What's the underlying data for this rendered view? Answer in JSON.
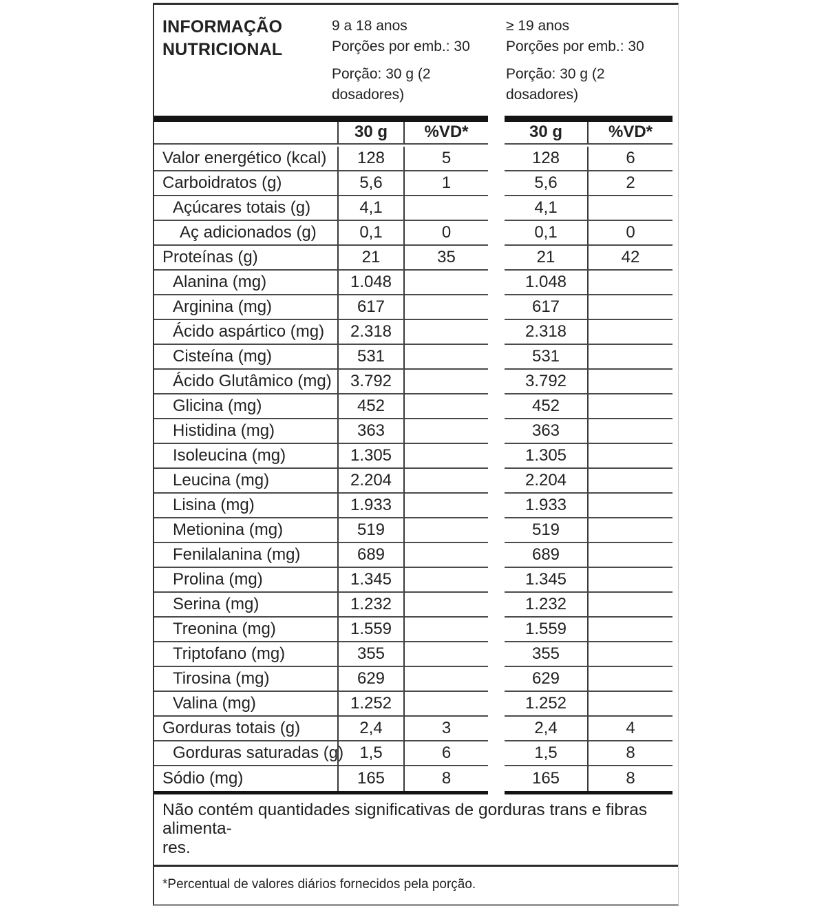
{
  "label": {
    "title": "INFORMAÇÃO NUTRICIONAL",
    "groups": [
      {
        "age_range": "9 a 18 anos",
        "servings_per_package": "Porções por emb.: 30",
        "serving_size": "Porção: 30 g (2 dosadores)"
      },
      {
        "age_range": "≥ 19 anos",
        "servings_per_package": "Porções por emb.: 30",
        "serving_size": "Porção: 30 g (2 dosadores)"
      }
    ],
    "col_headers": {
      "amount": "30 g",
      "dv": "%VD*"
    },
    "rows": [
      {
        "label": "Valor energético (kcal)",
        "indent": 0,
        "g1_amount": "128",
        "g1_dv": "5",
        "g2_amount": "128",
        "g2_dv": "6"
      },
      {
        "label": "Carboidratos (g)",
        "indent": 0,
        "g1_amount": "5,6",
        "g1_dv": "1",
        "g2_amount": "5,6",
        "g2_dv": "2"
      },
      {
        "label": "Açúcares totais (g)",
        "indent": 1,
        "g1_amount": "4,1",
        "g1_dv": "",
        "g2_amount": "4,1",
        "g2_dv": ""
      },
      {
        "label": "Aç adicionados (g)",
        "indent": 2,
        "g1_amount": "0,1",
        "g1_dv": "0",
        "g2_amount": "0,1",
        "g2_dv": "0"
      },
      {
        "label": "Proteínas (g)",
        "indent": 0,
        "g1_amount": "21",
        "g1_dv": "35",
        "g2_amount": "21",
        "g2_dv": "42"
      },
      {
        "label": "Alanina (mg)",
        "indent": 1,
        "g1_amount": "1.048",
        "g1_dv": "",
        "g2_amount": "1.048",
        "g2_dv": ""
      },
      {
        "label": "Arginina (mg)",
        "indent": 1,
        "g1_amount": "617",
        "g1_dv": "",
        "g2_amount": "617",
        "g2_dv": ""
      },
      {
        "label": "Ácido aspártico (mg)",
        "indent": 1,
        "g1_amount": "2.318",
        "g1_dv": "",
        "g2_amount": "2.318",
        "g2_dv": ""
      },
      {
        "label": "Cisteína (mg)",
        "indent": 1,
        "g1_amount": "531",
        "g1_dv": "",
        "g2_amount": "531",
        "g2_dv": ""
      },
      {
        "label": "Ácido Glutâmico (mg)",
        "indent": 1,
        "g1_amount": "3.792",
        "g1_dv": "",
        "g2_amount": "3.792",
        "g2_dv": ""
      },
      {
        "label": "Glicina (mg)",
        "indent": 1,
        "g1_amount": "452",
        "g1_dv": "",
        "g2_amount": "452",
        "g2_dv": ""
      },
      {
        "label": "Histidina (mg)",
        "indent": 1,
        "g1_amount": "363",
        "g1_dv": "",
        "g2_amount": "363",
        "g2_dv": ""
      },
      {
        "label": "Isoleucina (mg)",
        "indent": 1,
        "g1_amount": "1.305",
        "g1_dv": "",
        "g2_amount": "1.305",
        "g2_dv": ""
      },
      {
        "label": "Leucina (mg)",
        "indent": 1,
        "g1_amount": "2.204",
        "g1_dv": "",
        "g2_amount": "2.204",
        "g2_dv": ""
      },
      {
        "label": "Lisina (mg)",
        "indent": 1,
        "g1_amount": "1.933",
        "g1_dv": "",
        "g2_amount": "1.933",
        "g2_dv": ""
      },
      {
        "label": "Metionina (mg)",
        "indent": 1,
        "g1_amount": "519",
        "g1_dv": "",
        "g2_amount": "519",
        "g2_dv": ""
      },
      {
        "label": "Fenilalanina (mg)",
        "indent": 1,
        "g1_amount": "689",
        "g1_dv": "",
        "g2_amount": "689",
        "g2_dv": ""
      },
      {
        "label": "Prolina (mg)",
        "indent": 1,
        "g1_amount": "1.345",
        "g1_dv": "",
        "g2_amount": "1.345",
        "g2_dv": ""
      },
      {
        "label": "Serina (mg)",
        "indent": 1,
        "g1_amount": "1.232",
        "g1_dv": "",
        "g2_amount": "1.232",
        "g2_dv": ""
      },
      {
        "label": "Treonina (mg)",
        "indent": 1,
        "g1_amount": "1.559",
        "g1_dv": "",
        "g2_amount": "1.559",
        "g2_dv": ""
      },
      {
        "label": "Triptofano (mg)",
        "indent": 1,
        "g1_amount": "355",
        "g1_dv": "",
        "g2_amount": "355",
        "g2_dv": ""
      },
      {
        "label": "Tirosina (mg)",
        "indent": 1,
        "g1_amount": "629",
        "g1_dv": "",
        "g2_amount": "629",
        "g2_dv": ""
      },
      {
        "label": "Valina (mg)",
        "indent": 1,
        "g1_amount": "1.252",
        "g1_dv": "",
        "g2_amount": "1.252",
        "g2_dv": ""
      },
      {
        "label": "Gorduras totais (g)",
        "indent": 0,
        "g1_amount": "2,4",
        "g1_dv": "3",
        "g2_amount": "2,4",
        "g2_dv": "4"
      },
      {
        "label": "Gorduras saturadas (g)",
        "indent": 1,
        "g1_amount": "1,5",
        "g1_dv": "6",
        "g2_amount": "1,5",
        "g2_dv": "8"
      },
      {
        "label": "Sódio (mg)",
        "indent": 0,
        "g1_amount": "165",
        "g1_dv": "8",
        "g2_amount": "165",
        "g2_dv": "8"
      }
    ],
    "note_lines": [
      "Não contém quantidades significativas de gorduras trans e fibras alimenta-",
      "res."
    ],
    "footnote": "*Percentual de valores diários fornecidos pela porção.",
    "colors": {
      "text": "#222222",
      "row_line": "#4a4a4a",
      "heavy_bar": "#141414"
    }
  }
}
